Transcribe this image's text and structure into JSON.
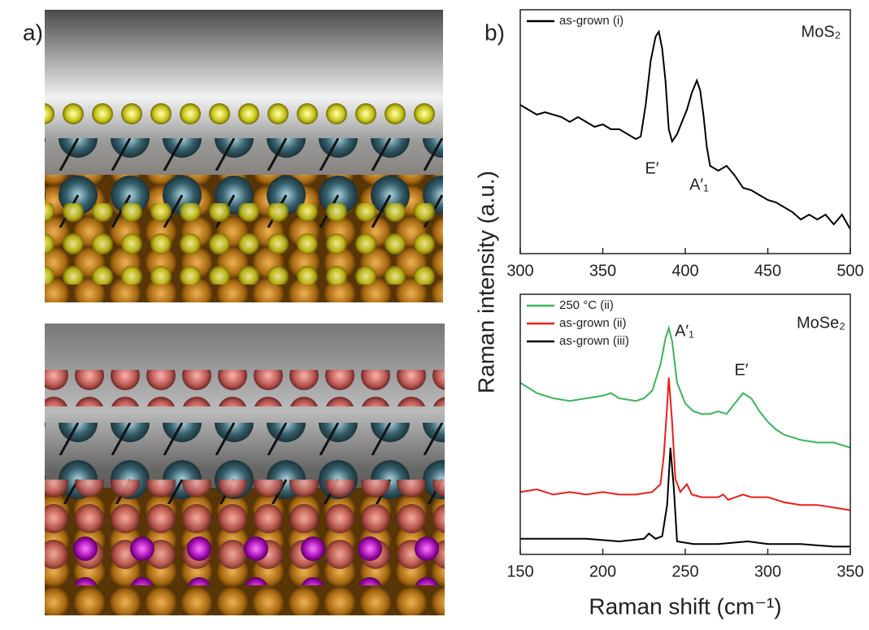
{
  "panel_labels": [
    "a)",
    "b)"
  ],
  "chart_data": [
    {
      "type": "line",
      "ylabel": "Raman intensity (a.u.)",
      "annotations": [
        "MoS₂",
        "E′",
        "A′₁"
      ],
      "x": [
        300,
        305,
        310,
        315,
        320,
        325,
        330,
        335,
        340,
        345,
        350,
        355,
        360,
        365,
        370,
        373,
        376,
        379,
        382,
        384,
        386,
        388,
        390,
        392,
        395,
        398,
        401,
        404,
        407,
        409,
        411,
        413,
        415,
        420,
        425,
        430,
        435,
        440,
        445,
        450,
        455,
        460,
        465,
        470,
        475,
        480,
        485,
        490,
        495,
        500
      ],
      "series": [
        {
          "name": "as-grown (i)",
          "color": "#000000",
          "values": [
            0.61,
            0.59,
            0.57,
            0.58,
            0.57,
            0.56,
            0.54,
            0.56,
            0.54,
            0.52,
            0.53,
            0.51,
            0.51,
            0.49,
            0.47,
            0.48,
            0.61,
            0.79,
            0.89,
            0.91,
            0.84,
            0.71,
            0.51,
            0.46,
            0.49,
            0.54,
            0.59,
            0.66,
            0.71,
            0.67,
            0.57,
            0.44,
            0.36,
            0.34,
            0.36,
            0.32,
            0.27,
            0.26,
            0.24,
            0.22,
            0.21,
            0.19,
            0.17,
            0.14,
            0.16,
            0.14,
            0.16,
            0.12,
            0.16,
            0.1
          ]
        }
      ],
      "xlim": [
        300,
        500
      ],
      "xticks": [
        300,
        350,
        400,
        450,
        500
      ],
      "ylim": [
        0,
        1
      ]
    },
    {
      "type": "line",
      "xlabel": "Raman shift (cm⁻¹)",
      "annotations": [
        "MoSe₂",
        "A′₁",
        "E′"
      ],
      "xlim": [
        150,
        350
      ],
      "xticks": [
        150,
        200,
        250,
        300,
        350
      ],
      "ylim": [
        0,
        1
      ],
      "series": [
        {
          "name": "250 °C (ii)",
          "color": "#3cb55a",
          "x": [
            150,
            160,
            170,
            180,
            190,
            200,
            205,
            210,
            220,
            225,
            230,
            235,
            238,
            240,
            242,
            245,
            250,
            255,
            260,
            265,
            270,
            275,
            280,
            285,
            290,
            295,
            300,
            305,
            310,
            320,
            330,
            340,
            350
          ],
          "values": [
            0.66,
            0.62,
            0.6,
            0.59,
            0.6,
            0.61,
            0.62,
            0.6,
            0.59,
            0.6,
            0.63,
            0.73,
            0.83,
            0.87,
            0.82,
            0.66,
            0.58,
            0.55,
            0.54,
            0.54,
            0.55,
            0.54,
            0.58,
            0.62,
            0.6,
            0.55,
            0.51,
            0.48,
            0.46,
            0.44,
            0.43,
            0.43,
            0.41
          ]
        },
        {
          "name": "as-grown (ii)",
          "color": "#e8201c",
          "x": [
            150,
            160,
            170,
            180,
            190,
            200,
            210,
            220,
            230,
            235,
            237,
            239,
            240,
            242,
            244,
            247,
            251,
            254,
            260,
            270,
            273,
            276,
            285,
            290,
            300,
            310,
            320,
            330,
            340,
            350
          ],
          "values": [
            0.24,
            0.25,
            0.23,
            0.24,
            0.23,
            0.24,
            0.23,
            0.23,
            0.24,
            0.27,
            0.38,
            0.57,
            0.68,
            0.51,
            0.29,
            0.24,
            0.27,
            0.23,
            0.22,
            0.22,
            0.23,
            0.21,
            0.23,
            0.22,
            0.22,
            0.2,
            0.19,
            0.19,
            0.18,
            0.17
          ]
        },
        {
          "name": "as-grown (iii)",
          "color": "#000000",
          "x": [
            150,
            170,
            190,
            210,
            225,
            228,
            232,
            236,
            239,
            241,
            243,
            245,
            255,
            270,
            288,
            300,
            320,
            340,
            350
          ],
          "values": [
            0.06,
            0.06,
            0.06,
            0.05,
            0.06,
            0.08,
            0.06,
            0.07,
            0.19,
            0.41,
            0.26,
            0.05,
            0.04,
            0.04,
            0.05,
            0.04,
            0.04,
            0.03,
            0.03
          ]
        }
      ]
    }
  ]
}
